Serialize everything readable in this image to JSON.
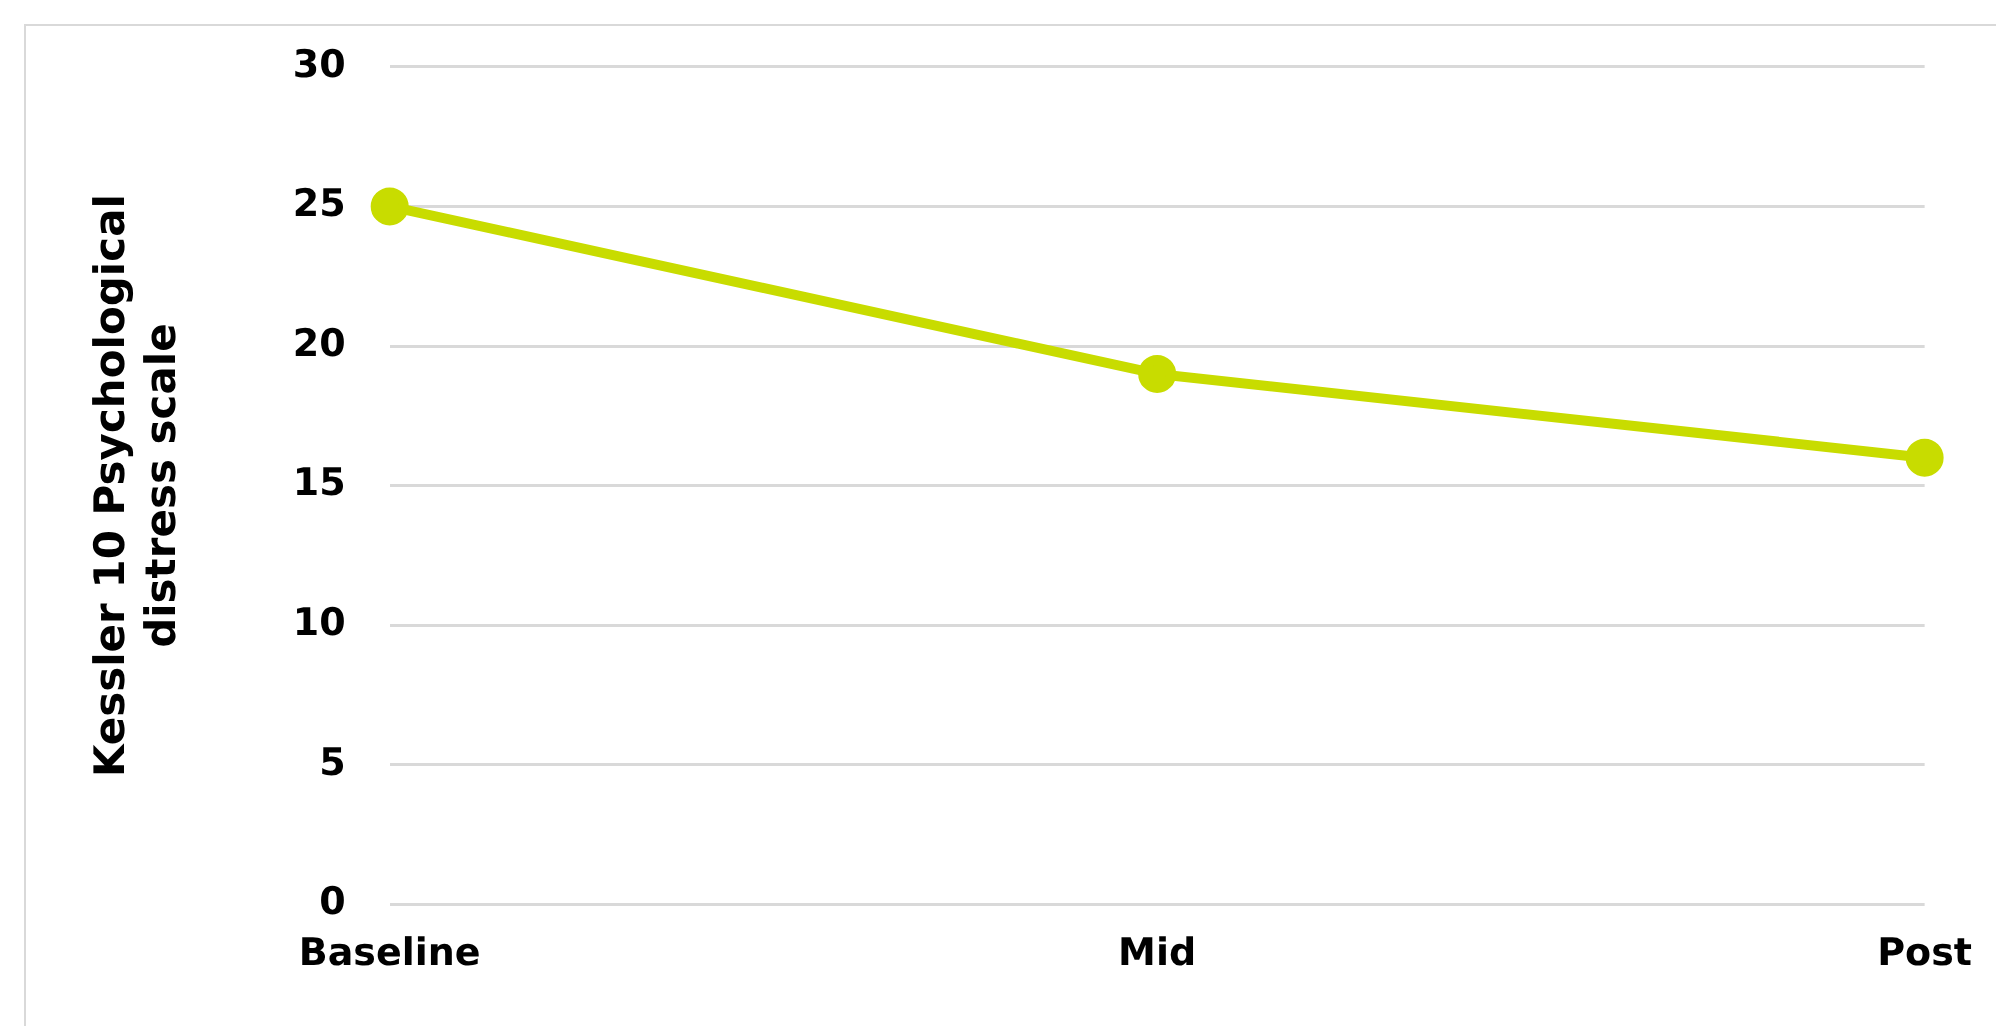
{
  "chart_data": {
    "type": "line",
    "ylabel": "Kessler 10 Psychological distress scale",
    "categories": [
      "Baseline",
      "Mid",
      "Post"
    ],
    "series": [
      {
        "color": "#c8dc00",
        "values": [
          25,
          19,
          16
        ]
      }
    ],
    "ylim": [
      0,
      30
    ],
    "yticks": [
      0,
      5,
      10,
      15,
      20,
      25,
      30
    ],
    "grid": "y",
    "legend": false,
    "marker": "circle",
    "line_style": "solid"
  }
}
